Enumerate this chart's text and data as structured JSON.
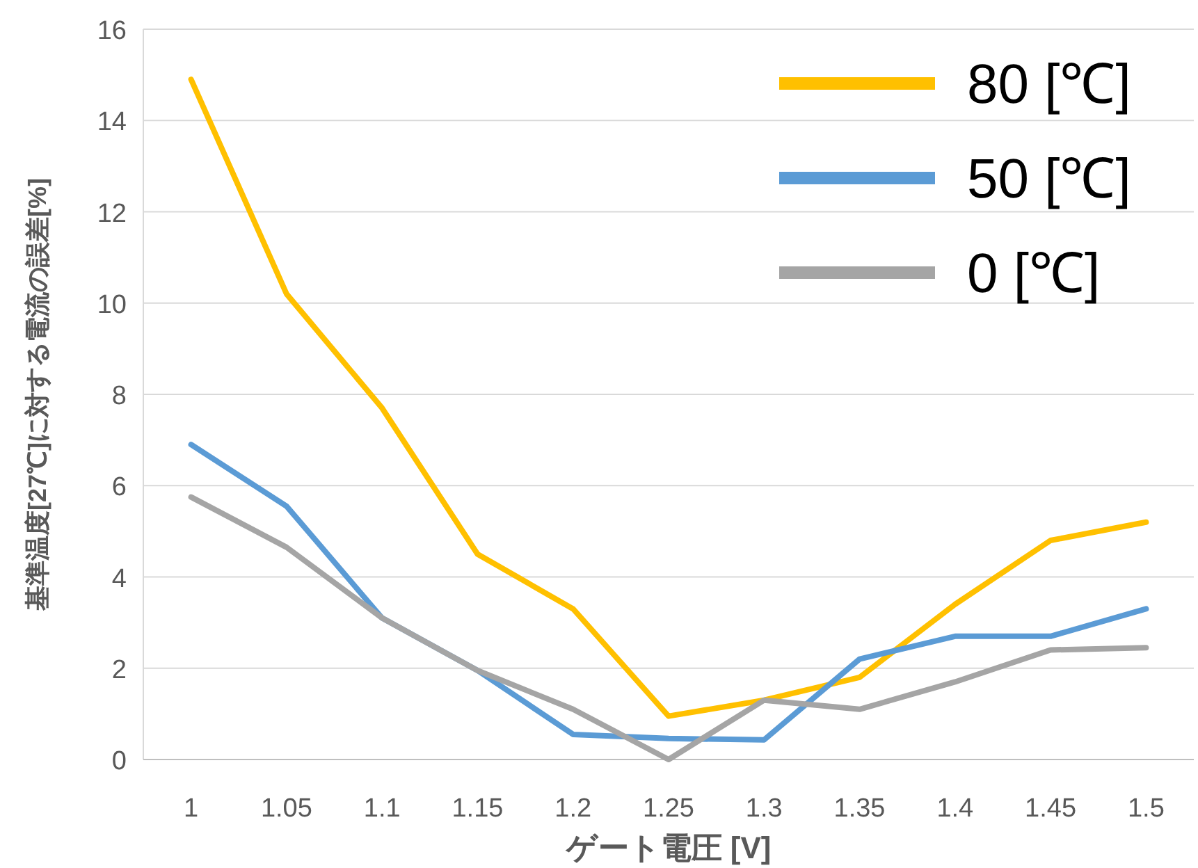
{
  "chart_data": {
    "type": "line",
    "xlabel": "ゲート電圧 [V]",
    "ylabel": "基準温度[27℃]に対する電流の誤差[%]",
    "categories": [
      "1",
      "1.05",
      "1.1",
      "1.15",
      "1.2",
      "1.25",
      "1.3",
      "1.35",
      "1.4",
      "1.45",
      "1.5"
    ],
    "ylim": [
      0,
      16
    ],
    "yticks": [
      0,
      2,
      4,
      6,
      8,
      10,
      12,
      14,
      16
    ],
    "grid": "y",
    "legend": "top right",
    "marker": "none",
    "line_style": "solid",
    "series": [
      {
        "name": "80 [℃]",
        "color": "#ffc000",
        "values": [
          14.9,
          10.2,
          7.7,
          4.5,
          3.3,
          0.95,
          1.3,
          1.8,
          3.4,
          4.8,
          5.2
        ]
      },
      {
        "name": "50 [℃]",
        "color": "#5b9bd5",
        "values": [
          6.9,
          5.55,
          3.1,
          1.95,
          0.55,
          0.46,
          0.43,
          2.2,
          2.7,
          2.7,
          3.3
        ]
      },
      {
        "name": "0 [℃]",
        "color": "#a5a5a5",
        "values": [
          5.75,
          4.65,
          3.1,
          1.95,
          1.1,
          0,
          1.3,
          1.1,
          1.7,
          2.4,
          2.45
        ]
      }
    ]
  }
}
